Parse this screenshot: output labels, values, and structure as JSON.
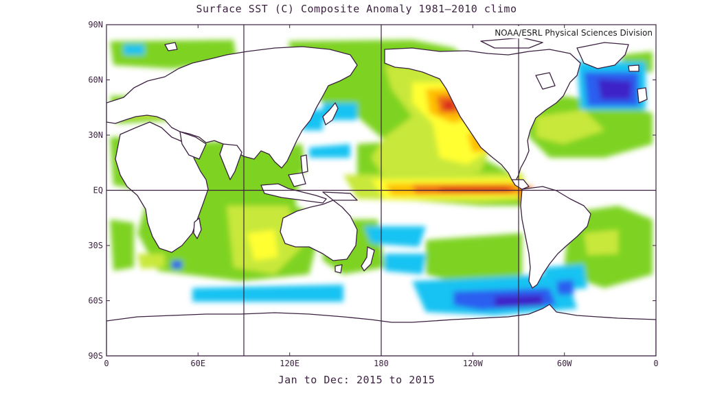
{
  "map": {
    "title": "Surface SST (C) Composite Anomaly 1981—2010 climo",
    "subtitle": "Jan to Dec: 2015 to 2015",
    "credit": "NOAA/ESRL Physical Sciences Division",
    "projection": "cylindrical equidistant",
    "lat_range": [
      -90,
      90
    ],
    "lon_range": [
      0,
      360
    ],
    "lat_ticks": [
      "90N",
      "60N",
      "30N",
      "EQ",
      "30S",
      "60S",
      "90S"
    ],
    "lon_ticks": [
      "0",
      "60E",
      "120E",
      "180",
      "120W",
      "60W",
      "0"
    ],
    "gridlines": "lon 90E, 180, 90W; equator",
    "colors": {
      "frame": "#3a1f3f",
      "coast": "#3a1f3f",
      "strong_cold": "#3c20c8",
      "cold": "#2a5ef0",
      "cool": "#17c3f2",
      "slight_warm": "#7ed321",
      "warm": "#c8e83a",
      "warmer": "#ffff33",
      "hot": "#ffc000",
      "very_hot": "#ee6a12",
      "extreme": "#d8201a"
    }
  }
}
